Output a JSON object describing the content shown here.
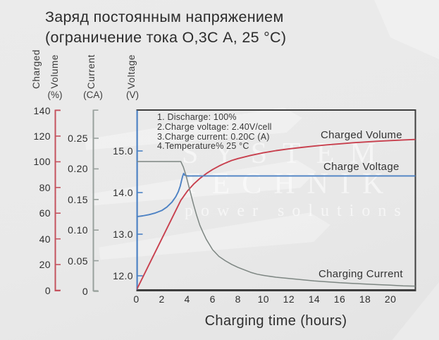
{
  "title": {
    "line1": "Заряд постоянным напряжением",
    "line2": "(ограничение тока О,3С А, 25 °C)"
  },
  "watermark": {
    "line1": "SYSTEM",
    "line2": "TECHNIK",
    "line3": "power solutions"
  },
  "axes": {
    "volume": {
      "word1": "Charged",
      "word2": "Volume",
      "unit": "(%)",
      "color": "#c4535e",
      "ticks": [
        "140",
        "120",
        "100",
        "80",
        "60",
        "40",
        "20",
        "0"
      ]
    },
    "current": {
      "word1": "Current",
      "unit": "(CA)",
      "color": "#99a19d",
      "ticks": [
        "0.25",
        "0.20",
        "0.15",
        "0.10",
        "0.05",
        "0"
      ]
    },
    "voltage": {
      "word1": "Voltage",
      "unit": "(V)",
      "color": "#4d82c4",
      "ticks": [
        "15.0",
        "14.0",
        "13.0",
        "12.0"
      ]
    },
    "x": {
      "label": "Charging time (hours)",
      "ticks": [
        "0",
        "2",
        "4",
        "6",
        "8",
        "10",
        "12",
        "14",
        "16",
        "18",
        "20"
      ]
    }
  },
  "legend": {
    "lines": [
      "1. Discharge: 100%",
      "2.Charge voltage: 2.40V/cell",
      "3.Charge current: 0.20C (A)",
      "4.Temperature% 25 °C"
    ]
  },
  "curve_labels": {
    "charged_volume": "Charged Volume",
    "charge_voltage": "Charge Voltage",
    "charging_current": "Charging Current"
  },
  "chart_data": {
    "type": "line",
    "title": "Заряд постоянным напряжением (ограничение тока О,3С А, 25 °C)",
    "xlabel": "Charging time (hours)",
    "x_range": [
      0,
      22
    ],
    "x_tick_step": 2,
    "grid": false,
    "y_axes": [
      {
        "id": "volume",
        "name": "Charged Volume",
        "unit": "%",
        "range": [
          0,
          140
        ],
        "tick_step": 20
      },
      {
        "id": "current",
        "name": "Current",
        "unit": "CA",
        "range": [
          0,
          0.25
        ],
        "tick_step": 0.05
      },
      {
        "id": "voltage",
        "name": "Voltage",
        "unit": "V",
        "ticks": [
          15.0,
          14.0,
          13.0,
          12.0
        ]
      }
    ],
    "annotations": [
      "1. Discharge: 100%",
      "2.Charge voltage: 2.40V/cell",
      "3.Charge current: 0.20C (A)",
      "4.Temperature% 25 °C"
    ],
    "series": [
      {
        "name": "Charged Volume",
        "axis": "volume",
        "unit": "%",
        "color": "#c8404e",
        "points": [
          [
            0,
            0
          ],
          [
            1,
            20
          ],
          [
            2,
            40
          ],
          [
            3,
            60
          ],
          [
            3.5,
            70
          ],
          [
            4,
            77
          ],
          [
            4.5,
            82.5
          ],
          [
            5,
            87
          ],
          [
            5.5,
            90.8
          ],
          [
            6,
            94
          ],
          [
            6.5,
            96.7
          ],
          [
            7,
            99
          ],
          [
            7.5,
            101
          ],
          [
            8,
            102.5
          ],
          [
            9,
            105
          ],
          [
            10,
            107
          ],
          [
            11,
            108.7
          ],
          [
            12,
            110
          ],
          [
            13,
            111.2
          ],
          [
            14,
            112.2
          ],
          [
            15,
            113.2
          ],
          [
            16,
            114
          ],
          [
            17,
            114.8
          ],
          [
            18,
            115.4
          ],
          [
            19,
            116
          ],
          [
            20,
            116.5
          ],
          [
            21,
            117
          ],
          [
            22,
            117.4
          ]
        ]
      },
      {
        "name": "Charge Voltage",
        "axis": "voltage",
        "unit": "V",
        "color": "#4d82c4",
        "points": [
          [
            0,
            13.42
          ],
          [
            0.5,
            13.44
          ],
          [
            1,
            13.47
          ],
          [
            1.5,
            13.51
          ],
          [
            2,
            13.57
          ],
          [
            2.4,
            13.65
          ],
          [
            2.8,
            13.77
          ],
          [
            3.1,
            13.9
          ],
          [
            3.3,
            14.02
          ],
          [
            3.45,
            14.15
          ],
          [
            3.55,
            14.28
          ],
          [
            3.65,
            14.4
          ],
          [
            3.72,
            14.46
          ],
          [
            3.8,
            14.42
          ],
          [
            4,
            14.4
          ],
          [
            22,
            14.4
          ]
        ]
      },
      {
        "name": "Charging Current",
        "axis": "current",
        "unit": "CA",
        "color": "#7d8682",
        "points": [
          [
            0,
            0.212
          ],
          [
            3.5,
            0.212
          ],
          [
            3.7,
            0.203
          ],
          [
            3.9,
            0.19
          ],
          [
            4.1,
            0.174
          ],
          [
            4.3,
            0.158
          ],
          [
            4.5,
            0.142
          ],
          [
            4.75,
            0.124
          ],
          [
            5,
            0.108
          ],
          [
            5.25,
            0.096
          ],
          [
            5.5,
            0.085
          ],
          [
            6,
            0.068
          ],
          [
            6.5,
            0.057
          ],
          [
            7,
            0.05
          ],
          [
            7.5,
            0.044
          ],
          [
            8,
            0.039
          ],
          [
            8.5,
            0.035
          ],
          [
            9,
            0.031
          ],
          [
            9.5,
            0.028
          ],
          [
            10,
            0.026
          ],
          [
            11,
            0.023
          ],
          [
            12,
            0.021
          ],
          [
            13,
            0.019
          ],
          [
            14,
            0.017
          ],
          [
            15,
            0.0155
          ],
          [
            16,
            0.014
          ],
          [
            17,
            0.013
          ],
          [
            18,
            0.012
          ],
          [
            19,
            0.011
          ],
          [
            20,
            0.01
          ],
          [
            21,
            0.009
          ],
          [
            22,
            0.0085
          ]
        ]
      }
    ]
  }
}
